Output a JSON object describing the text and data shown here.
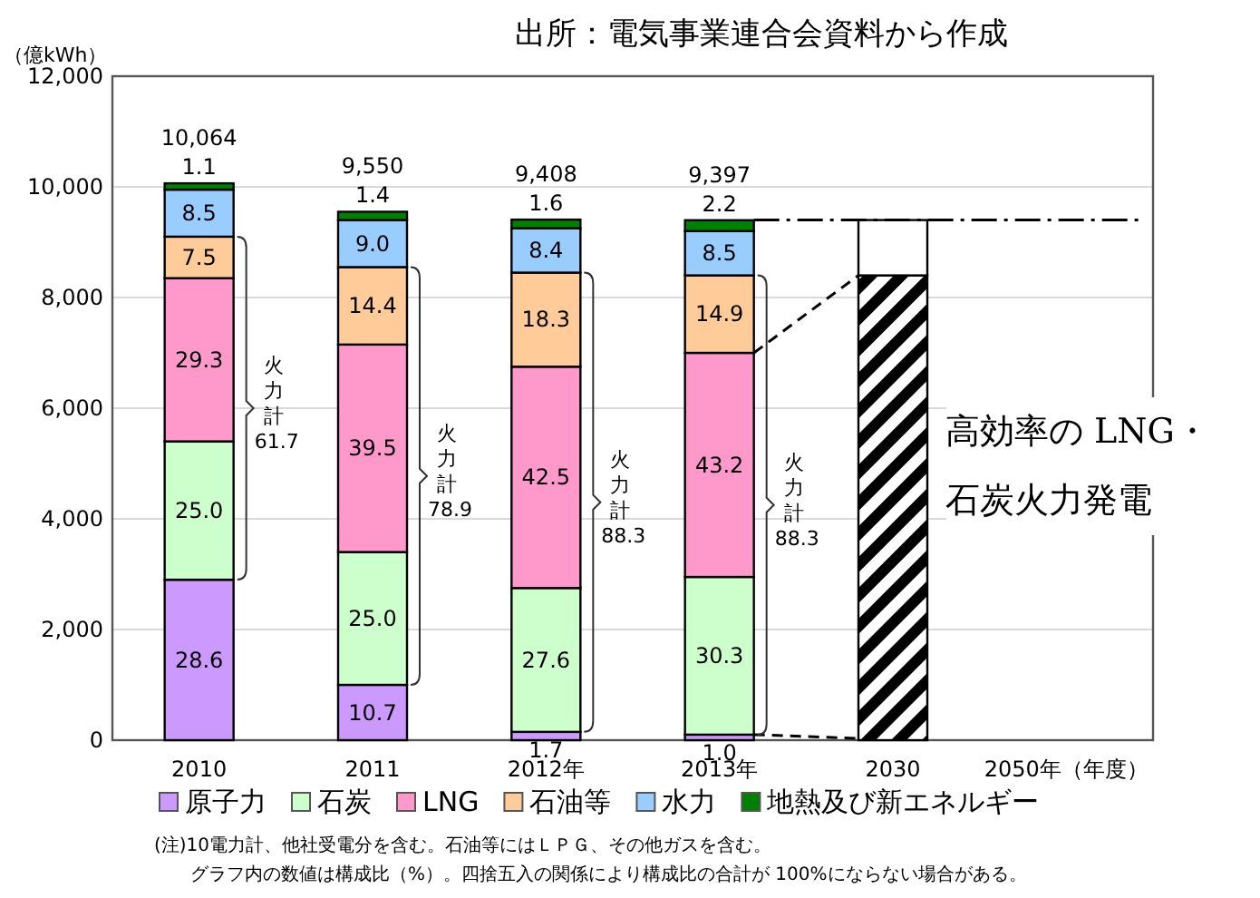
{
  "chart_data": {
    "type": "bar",
    "stacked": true,
    "ylabel": "（億kWh）",
    "categories": [
      "2010",
      "2011",
      "2012年",
      "2013年",
      "2030",
      "2050年（年度）"
    ],
    "ylim": [
      0,
      12000
    ],
    "yticks": [
      {
        "value": 0,
        "label": "0"
      },
      {
        "value": 2000,
        "label": "2,000"
      },
      {
        "value": 4000,
        "label": "4,000"
      },
      {
        "value": 6000,
        "label": "6,000"
      },
      {
        "value": 8000,
        "label": "8,000"
      },
      {
        "value": 10000,
        "label": "10,000"
      },
      {
        "value": 12000,
        "label": "12,000"
      }
    ],
    "grid": "y",
    "legend": "bottom",
    "series": [
      {
        "name": "原子力",
        "color": "#cc99ff",
        "values": [
          2900,
          1000,
          150,
          100,
          null,
          null
        ]
      },
      {
        "name": "石炭",
        "color": "#ccffcc",
        "values": [
          2500,
          2400,
          2600,
          2850,
          null,
          null
        ]
      },
      {
        "name": "LNG",
        "color": "#ff99cc",
        "values": [
          2950,
          3750,
          4000,
          4050,
          null,
          null
        ]
      },
      {
        "name": "石油等",
        "color": "#ffcc99",
        "values": [
          750,
          1400,
          1700,
          1400,
          null,
          null
        ]
      },
      {
        "name": "水力",
        "color": "#99ccff",
        "values": [
          850,
          850,
          800,
          800,
          null,
          null
        ]
      },
      {
        "name": "地熱及び新エネルギー",
        "color": "#008000",
        "values": [
          114,
          150,
          158,
          197,
          null,
          null
        ]
      },
      {
        "color": "#000000",
        "values": [
          null,
          null,
          null,
          null,
          8400,
          null
        ]
      },
      {
        "color": "#ffffff",
        "values": [
          null,
          null,
          null,
          null,
          1000,
          null
        ]
      }
    ],
    "totals": [
      "10,064",
      "9,550",
      "9,408",
      "9,397",
      null,
      null
    ],
    "ref_lines": [
      {
        "axis": "y",
        "value": 9400,
        "line_style": "dashdot",
        "color": "#000000"
      }
    ],
    "annotations": [
      "出所：電気事業連合会資料から作成",
      "28.6",
      "10.7",
      "1.7",
      {
        "text": "1.0",
        "x": "2013年",
        "y": 100
      },
      "25.0",
      "25.0",
      "27.6",
      "30.3",
      "29.3",
      "39.5",
      "42.5",
      "43.2",
      {
        "text": "7.5",
        "x": "2010",
        "y": 9100
      },
      "14.4",
      "18.3",
      {
        "text": "14.9",
        "x": "2013年",
        "y": 8400
      },
      {
        "text": "8.5",
        "x": "2010",
        "y": 9950
      },
      "9.0",
      "8.4",
      "8.5",
      "1.1",
      "1.4",
      "1.6",
      "2.2",
      "火力計 61.7",
      "火力計 78.9",
      "火力計 88.3",
      "火力計 88.3",
      "高効率の LNG・石炭火力発電",
      "(注)10電力計、他社受電分を含む。石油等にはＬＰＧ、その他ガスを含む。",
      "グラフ内の数値は構成比（%）。四捨五入の関係により構成比の合計が 100%にならない場合がある。"
    ]
  }
}
